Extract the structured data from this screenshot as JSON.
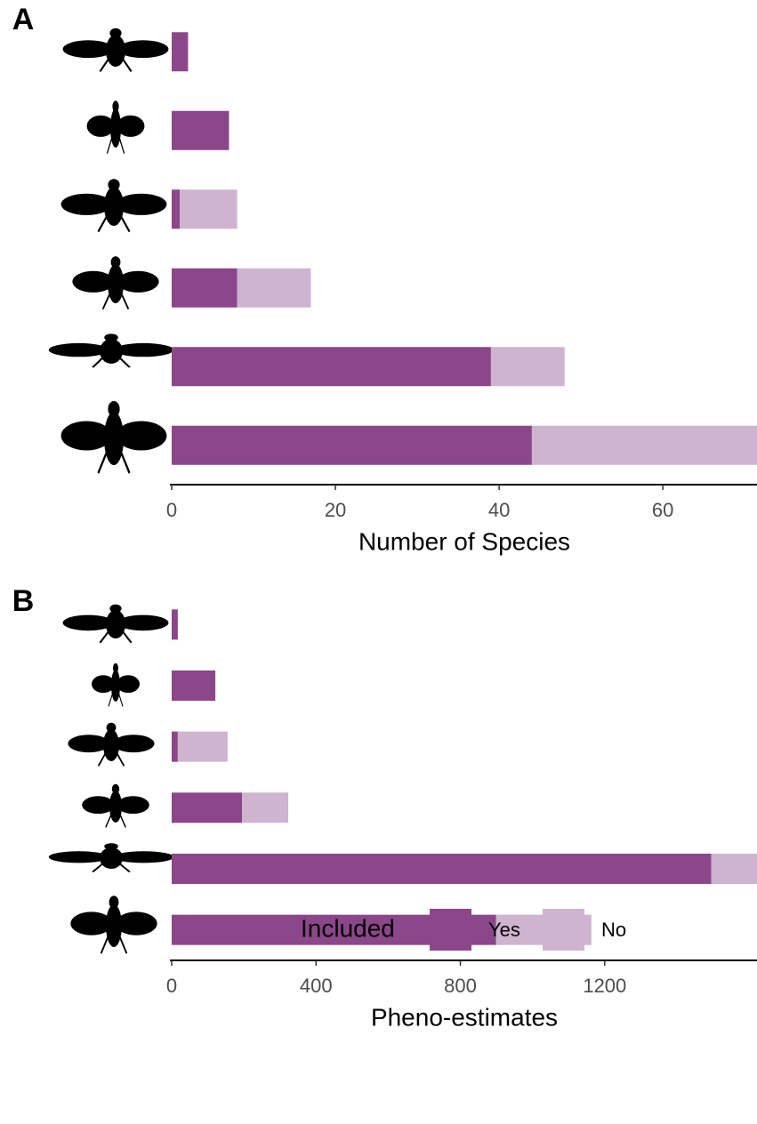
{
  "chart_data": [
    {
      "type": "bar",
      "orientation": "horizontal",
      "stacked": true,
      "panel_label": "A",
      "x_label": "Number of Species",
      "legend_title": "Included",
      "categories": [
        null,
        null,
        null,
        null,
        null,
        null
      ],
      "series": [
        {
          "name": "Yes",
          "color": "#8b4789",
          "values": [
            2,
            7,
            1,
            8,
            39,
            44
          ]
        },
        {
          "name": "No",
          "color": "#ceb4cf",
          "values": [
            0,
            0,
            7,
            9,
            9,
            27.5
          ]
        }
      ],
      "xlim": [
        0,
        71.5
      ],
      "xticks": [
        0,
        20,
        40,
        60
      ]
    },
    {
      "type": "bar",
      "orientation": "horizontal",
      "stacked": true,
      "panel_label": "B",
      "x_label": "Pheno-estimates",
      "categories": [
        null,
        null,
        null,
        null,
        null,
        null
      ],
      "series": [
        {
          "color": "#8b4789",
          "values": [
            17,
            121,
            17,
            195,
            1495,
            899
          ]
        },
        {
          "color": "#ceb4cf",
          "values": [
            0,
            0,
            138,
            128,
            127,
            264
          ]
        }
      ],
      "xlim": [
        0,
        1622
      ],
      "xticks": [
        0,
        400,
        800,
        1200
      ]
    }
  ]
}
